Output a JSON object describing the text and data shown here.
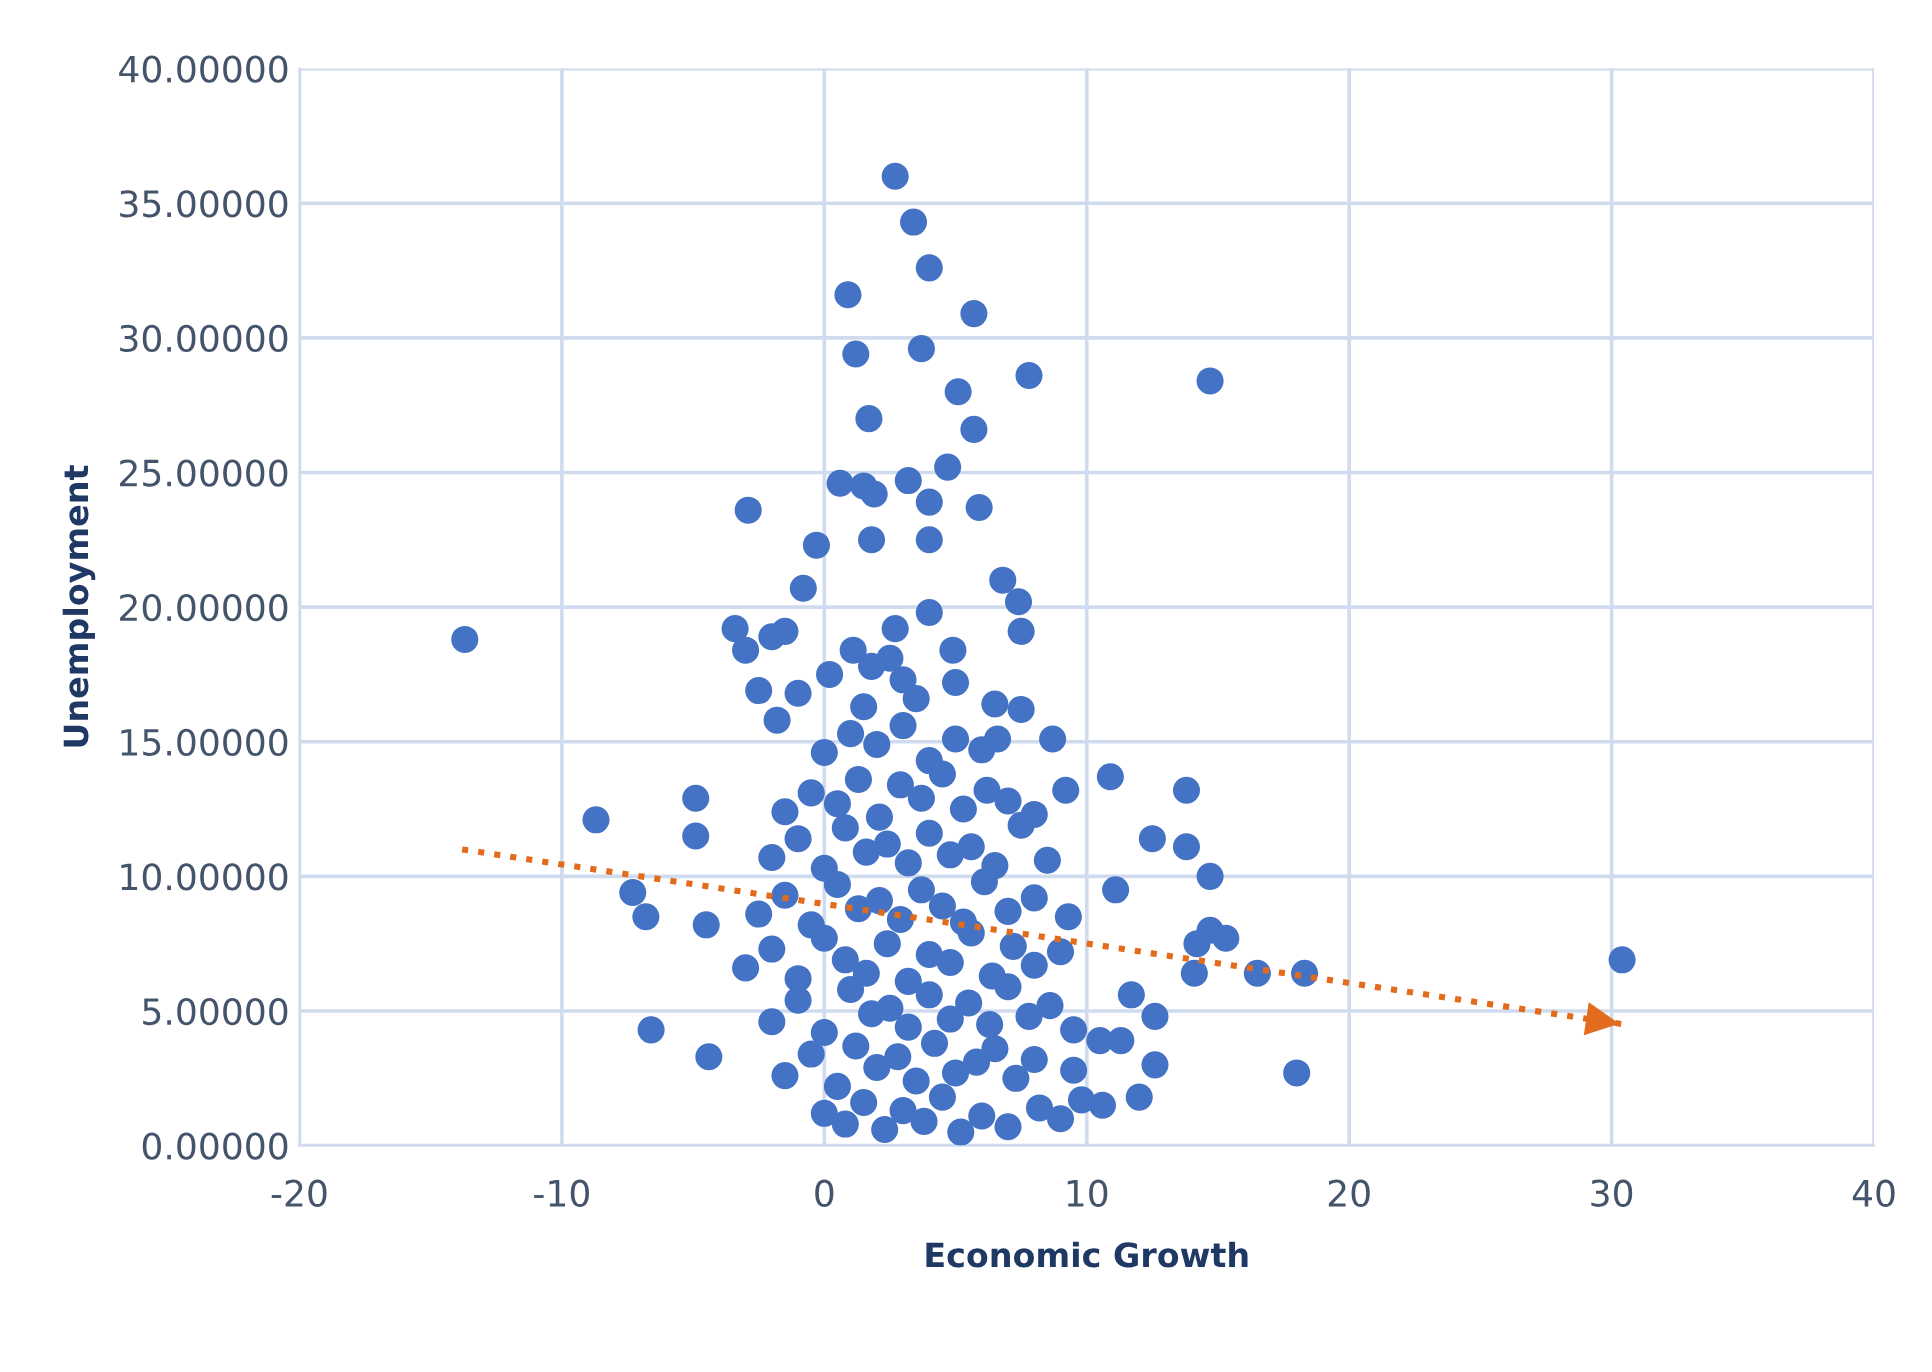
{
  "chart_data": {
    "type": "scatter",
    "xlabel": "Economic Growth",
    "ylabel": "Unemployment",
    "xlim": [
      -20,
      40
    ],
    "xticks": [
      -20,
      -10,
      0,
      10,
      20,
      30,
      40
    ],
    "ylim": [
      0,
      40
    ],
    "yticks": [
      {
        "value": 0,
        "label": "0.00000"
      },
      {
        "value": 5,
        "label": "5.00000"
      },
      {
        "value": 10,
        "label": "10.00000"
      },
      {
        "value": 15,
        "label": "15.00000"
      },
      {
        "value": 20,
        "label": "20.00000"
      },
      {
        "value": 25,
        "label": "25.00000"
      },
      {
        "value": 30,
        "label": "30.00000"
      },
      {
        "value": 35,
        "label": "35.00000"
      },
      {
        "value": 40,
        "label": "40.00000"
      }
    ],
    "grid": true,
    "legend": false,
    "marker": "circle",
    "series": [
      {
        "color": "#4472c4",
        "x": [
          -13.7,
          -8.7,
          -7.3,
          -6.8,
          -6.6,
          -4.9,
          -4.9,
          -4.4,
          -4.5,
          -2.9,
          -3.4,
          -3.0,
          -2.5,
          -1.8,
          -0.8,
          -0.3,
          2.7,
          3.4,
          4.0,
          0.9,
          5.7,
          1.2,
          3.7,
          7.8,
          14.7,
          5.1,
          1.7,
          5.7,
          0.6,
          1.5,
          1.9,
          3.2,
          4.7,
          4.0,
          5.9,
          1.8,
          4.0,
          6.8,
          7.4,
          4.0,
          7.5,
          4.9,
          2.7,
          1.1,
          1.8,
          3.0,
          7.5,
          6.6,
          8.7,
          9.2,
          10.9,
          13.8,
          12.5,
          13.8,
          14.7,
          11.1,
          14.7,
          15.3,
          14.2,
          14.1,
          16.5,
          18.3,
          18.0,
          30.4,
          11.7,
          12.6,
          12.6,
          12.0,
          10.6,
          10.5,
          11.3,
          0.0,
          0.8,
          1.5,
          2.3,
          3.0,
          3.8,
          4.5,
          5.2,
          6.0,
          7.0,
          8.2,
          9.0,
          9.8,
          -1.5,
          -0.5,
          0.5,
          1.2,
          2.0,
          2.8,
          3.5,
          4.2,
          5.0,
          5.8,
          6.5,
          7.3,
          8.0,
          9.5,
          -2.0,
          -1.0,
          0.0,
          1.0,
          1.8,
          2.5,
          3.2,
          4.0,
          4.8,
          5.5,
          6.3,
          7.0,
          7.8,
          8.6,
          9.5,
          -3.0,
          -2.0,
          -1.0,
          0.0,
          0.8,
          1.6,
          2.4,
          3.2,
          4.0,
          4.8,
          5.6,
          6.4,
          7.2,
          8.0,
          9.0,
          -2.5,
          -1.5,
          -0.5,
          0.5,
          1.3,
          2.1,
          2.9,
          3.7,
          4.5,
          5.3,
          6.1,
          7.0,
          8.0,
          9.3,
          -2.0,
          -1.0,
          0.0,
          0.8,
          1.6,
          2.4,
          3.2,
          4.0,
          4.8,
          5.6,
          6.5,
          7.5,
          8.5,
          -1.5,
          -0.5,
          0.5,
          1.3,
          2.1,
          2.9,
          3.7,
          4.5,
          5.3,
          6.2,
          7.0,
          8.0,
          0.0,
          1.0,
          2.0,
          3.0,
          4.0,
          5.0,
          6.0,
          -1.0,
          0.2,
          1.5,
          2.5,
          3.5,
          5.0,
          6.5,
          -2.0,
          -1.5
        ],
        "values": [
          18.8,
          12.1,
          9.4,
          8.5,
          4.3,
          12.9,
          11.5,
          3.3,
          8.2,
          23.6,
          19.2,
          18.4,
          16.9,
          15.8,
          20.7,
          22.3,
          36.0,
          34.3,
          32.6,
          31.6,
          30.9,
          29.4,
          29.6,
          28.6,
          28.4,
          28.0,
          27.0,
          26.6,
          24.6,
          24.5,
          24.2,
          24.7,
          25.2,
          23.9,
          23.7,
          22.5,
          22.5,
          21.0,
          20.2,
          19.8,
          19.1,
          18.4,
          19.2,
          18.4,
          17.8,
          17.3,
          16.2,
          15.1,
          15.1,
          13.2,
          13.7,
          13.2,
          11.4,
          11.1,
          10.0,
          9.5,
          8.0,
          7.7,
          7.5,
          6.4,
          6.4,
          6.4,
          2.7,
          6.9,
          5.6,
          4.8,
          3.0,
          1.8,
          1.5,
          3.9,
          3.9,
          1.2,
          0.8,
          1.6,
          0.6,
          1.3,
          0.9,
          1.8,
          0.5,
          1.1,
          0.7,
          1.4,
          1.0,
          1.7,
          2.6,
          3.4,
          2.2,
          3.7,
          2.9,
          3.3,
          2.4,
          3.8,
          2.7,
          3.1,
          3.6,
          2.5,
          3.2,
          2.8,
          4.6,
          5.4,
          4.2,
          5.8,
          4.9,
          5.1,
          4.4,
          5.6,
          4.7,
          5.3,
          4.5,
          5.9,
          4.8,
          5.2,
          4.3,
          6.6,
          7.3,
          6.2,
          7.7,
          6.9,
          6.4,
          7.5,
          6.1,
          7.1,
          6.8,
          7.9,
          6.3,
          7.4,
          6.7,
          7.2,
          8.6,
          9.3,
          8.2,
          9.7,
          8.8,
          9.1,
          8.4,
          9.5,
          8.9,
          8.3,
          9.8,
          8.7,
          9.2,
          8.5,
          10.7,
          11.4,
          10.3,
          11.8,
          10.9,
          11.2,
          10.5,
          11.6,
          10.8,
          11.1,
          10.4,
          11.9,
          10.6,
          12.4,
          13.1,
          12.7,
          13.6,
          12.2,
          13.4,
          12.9,
          13.8,
          12.5,
          13.2,
          12.8,
          12.3,
          14.6,
          15.3,
          14.9,
          15.6,
          14.3,
          15.1,
          14.7,
          16.8,
          17.5,
          16.3,
          18.1,
          16.6,
          17.2,
          16.4,
          18.9,
          19.1
        ]
      },
      {
        "type": "line",
        "color": "#e36c1c",
        "line_style": "dotted",
        "marker": "none",
        "x": [
          -13.8,
          30.5
        ],
        "values": [
          11.0,
          4.5
        ]
      }
    ]
  }
}
